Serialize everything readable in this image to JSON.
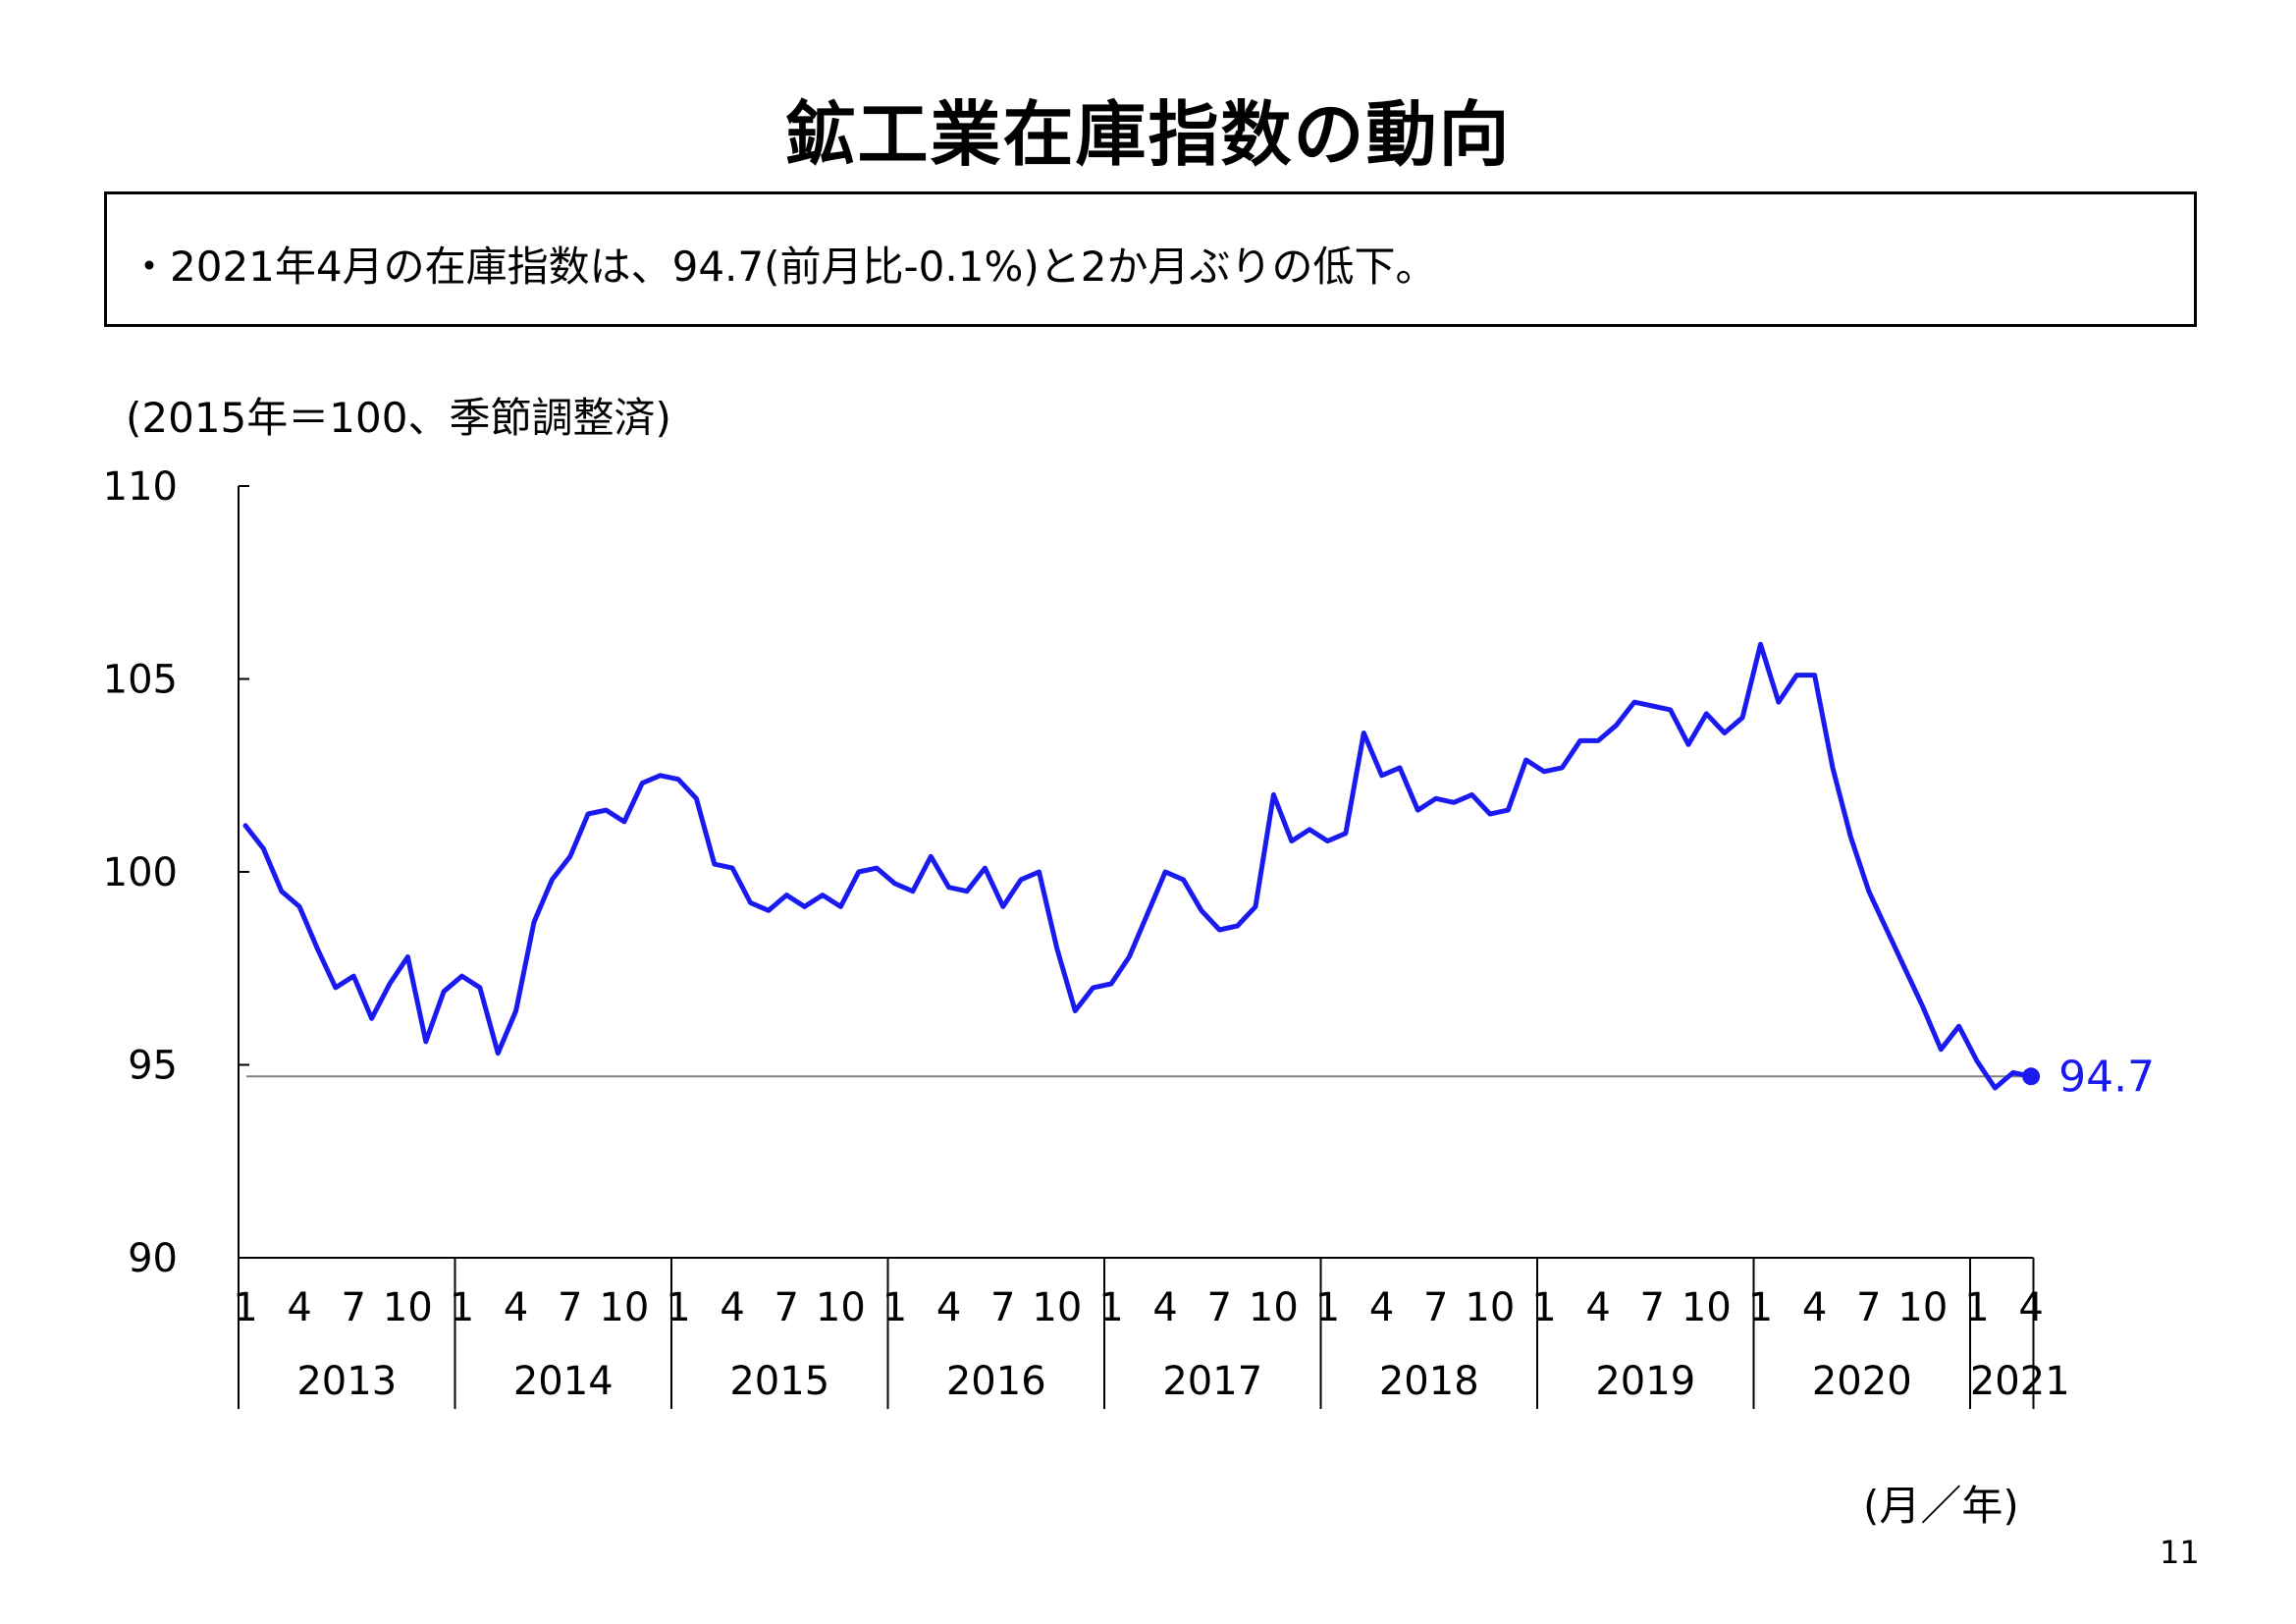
{
  "page": {
    "title": "鉱工業在庫指数の動向",
    "summary": "・2021年4月の在庫指数は、94.7(前月比-0.1%)と2か月ぶりの低下。",
    "unit_note": "(2015年＝100、季節調整済)",
    "x_unit_note": "(月／年)",
    "page_number": "11"
  },
  "chart_data": {
    "type": "line",
    "title": "",
    "ylim": [
      90,
      110
    ],
    "yticks": [
      90,
      95,
      100,
      105,
      110
    ],
    "years": [
      "2013",
      "2014",
      "2015",
      "2016",
      "2017",
      "2018",
      "2019",
      "2020",
      "2021"
    ],
    "month_ticks": [
      "1",
      "4",
      "7",
      "10"
    ],
    "month_ticks_last_year": [
      "1",
      "4"
    ],
    "line_color": "#1a1af0",
    "reference_line_color": "#808080",
    "last_value_label": "94.7",
    "series": [
      {
        "values": [
          101.2,
          100.6,
          99.5,
          99.1,
          98.0,
          97.0,
          97.3,
          96.2,
          97.1,
          97.8,
          95.6,
          96.9,
          97.3,
          97.0,
          95.3,
          96.4,
          98.7,
          99.8,
          100.4,
          101.5,
          101.6,
          101.3,
          102.3,
          102.5,
          102.4,
          101.9,
          100.2,
          100.1,
          99.2,
          99.0,
          99.4,
          99.1,
          99.4,
          99.1,
          100.0,
          100.1,
          99.7,
          99.5,
          100.4,
          99.6,
          99.5,
          100.1,
          99.1,
          99.8,
          100.0,
          98.0,
          96.4,
          97.0,
          97.1,
          97.8,
          98.9,
          100.0,
          99.8,
          99.0,
          98.5,
          98.6,
          99.1,
          102.0,
          100.8,
          101.1,
          100.8,
          101.0,
          103.6,
          102.5,
          102.7,
          101.6,
          101.9,
          101.8,
          102.0,
          101.5,
          101.6,
          102.9,
          102.6,
          102.7,
          103.4,
          103.4,
          103.8,
          104.4,
          104.3,
          104.2,
          103.3,
          104.1,
          103.6,
          104.0,
          105.9,
          104.4,
          105.1,
          105.1,
          102.7,
          100.9,
          99.5,
          98.5,
          97.5,
          96.5,
          95.4,
          96.0,
          95.1,
          94.4,
          94.8,
          94.7
        ]
      }
    ]
  }
}
